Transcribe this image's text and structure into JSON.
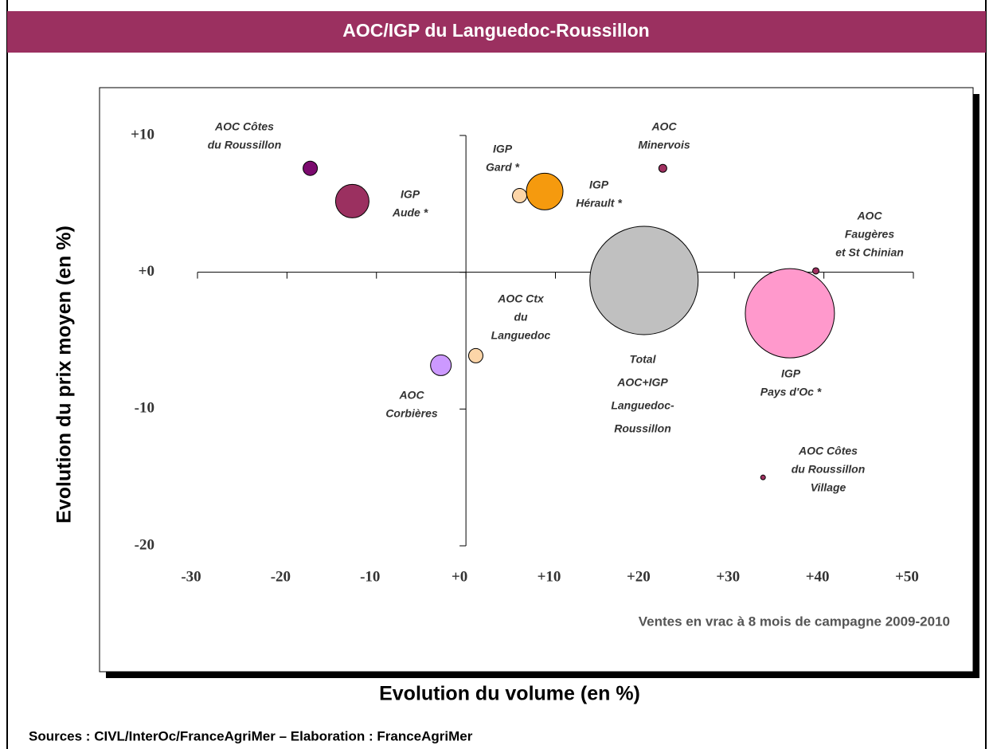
{
  "chart_data": {
    "type": "bubble",
    "title": "AOC/IGP du Languedoc-Roussillon",
    "x_label": "Evolution du volume (en %)",
    "y_label": "Evolution du prix moyen (en %)",
    "annotation": "Ventes en vrac à 8 mois de campagne 2009-2010",
    "source": "Sources : CIVL/InterOc/FranceAgriMer – Elaboration : FranceAgriMer",
    "labels": [
      [
        "AOC Côtes",
        "du Roussillon"
      ],
      [
        "IGP",
        "Aude *"
      ],
      [
        "IGP",
        "Gard *"
      ],
      [
        "IGP",
        "Hérault *"
      ],
      [
        "AOC",
        "Minervois"
      ],
      [
        "AOC",
        "Faugères",
        "et St Chinian"
      ],
      [
        "Total",
        "AOC+IGP",
        "Languedoc-",
        "Roussillon"
      ],
      [
        "IGP",
        "Pays d'Oc *"
      ],
      [
        "AOC Ctx",
        "du",
        "Languedoc"
      ],
      [
        "AOC",
        "Corbières"
      ],
      [
        "AOC Côtes",
        "du Roussillon",
        "Village"
      ]
    ],
    "x": [
      -17.4,
      -12.7,
      6.0,
      8.8,
      22.0,
      39.1,
      19.9,
      36.2,
      1.1,
      -2.8,
      33.2
    ],
    "values": [
      7.6,
      5.2,
      5.6,
      5.9,
      7.6,
      0.1,
      -0.6,
      -3.0,
      -6.1,
      -6.8,
      -15.0
    ],
    "sizes": [
      9,
      21,
      9,
      23,
      5,
      4,
      68,
      56,
      9,
      13,
      3
    ],
    "colors": [
      "#7b0a6e",
      "#9b3060",
      "#fcd5a8",
      "#f59a0e",
      "#a03060",
      "#a03060",
      "#c0c0c0",
      "#ff99cc",
      "#fcd5a8",
      "#cc99ff",
      "#a03060"
    ],
    "xlim": [
      -30,
      50
    ],
    "xticks": [
      {
        "value": -30,
        "label": "-30"
      },
      {
        "value": -20,
        "label": "-20"
      },
      {
        "value": -10,
        "label": "-10"
      },
      {
        "value": 0,
        "label": "+0"
      },
      {
        "value": 10,
        "label": "+10"
      },
      {
        "value": 20,
        "label": "+20"
      },
      {
        "value": 30,
        "label": "+30"
      },
      {
        "value": 40,
        "label": "+40"
      },
      {
        "value": 50,
        "label": "+50"
      }
    ],
    "ylim": [
      -20,
      10
    ],
    "yticks": [
      {
        "value": -20,
        "label": "-20"
      },
      {
        "value": -10,
        "label": "-10"
      },
      {
        "value": 0,
        "label": "+0"
      },
      {
        "value": 10,
        "label": "+10"
      }
    ]
  }
}
